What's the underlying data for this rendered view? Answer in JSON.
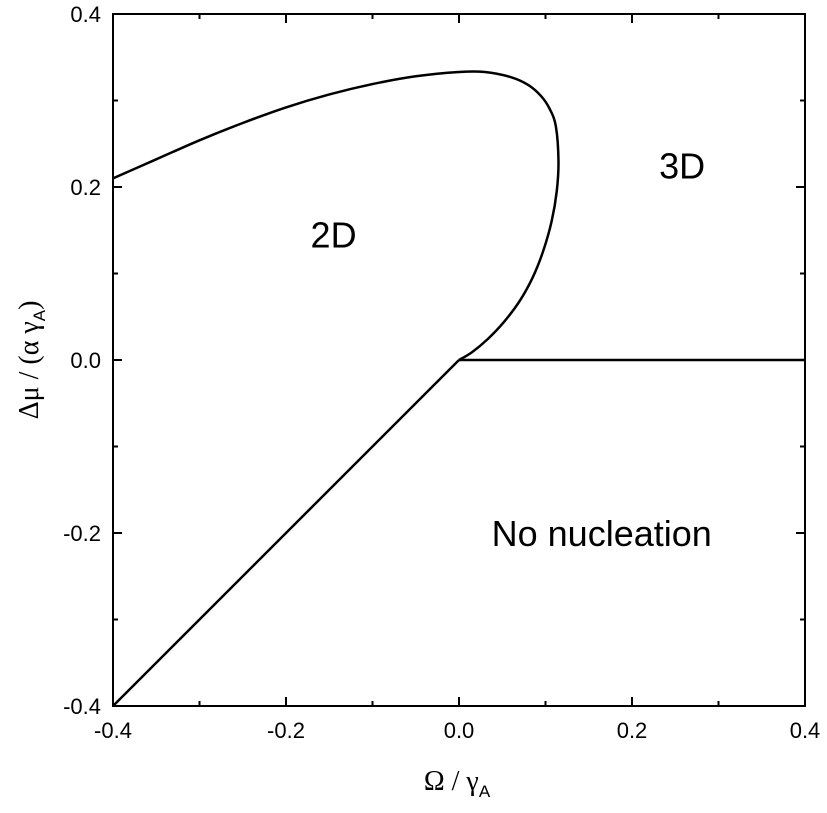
{
  "chart_data": {
    "type": "line",
    "title": "",
    "xlabel": {
      "main": "Ω / γ",
      "sub": "A"
    },
    "ylabel": {
      "main": "Δμ / (α γ",
      "sub": "A",
      "tail": ")"
    },
    "xlim": [
      -0.4,
      0.4
    ],
    "ylim": [
      -0.4,
      0.4
    ],
    "x_ticks": [
      -0.4,
      -0.2,
      0.0,
      0.2,
      0.4
    ],
    "x_tick_labels": [
      "-0.4",
      "-0.2",
      "0.0",
      "0.2",
      "0.4"
    ],
    "y_ticks": [
      -0.4,
      -0.2,
      0.0,
      0.2,
      0.4
    ],
    "y_tick_labels": [
      "-0.4",
      "-0.2",
      "0.0",
      "0.2",
      "0.4"
    ],
    "grid": false,
    "legend": "none",
    "line_color": "#000000",
    "series": [
      {
        "x": [
          -0.4,
          -0.35,
          -0.3,
          -0.25,
          -0.2,
          -0.15,
          -0.1,
          -0.05,
          0.0,
          0.03,
          0.06,
          0.08,
          0.095,
          0.105,
          0.112,
          0.115,
          0.113,
          0.107,
          0.097,
          0.085,
          0.07,
          0.052,
          0.033,
          0.015,
          0.0
        ],
        "y": [
          0.21,
          0.232,
          0.254,
          0.274,
          0.292,
          0.307,
          0.319,
          0.328,
          0.333,
          0.333,
          0.327,
          0.318,
          0.305,
          0.29,
          0.27,
          0.23,
          0.195,
          0.16,
          0.125,
          0.095,
          0.068,
          0.044,
          0.024,
          0.009,
          0.0
        ]
      },
      {
        "x": [
          0.0,
          -0.4
        ],
        "y": [
          0.0,
          -0.4
        ]
      },
      {
        "x": [
          0.0,
          0.4
        ],
        "y": [
          0.0,
          0.0
        ]
      }
    ],
    "annotations": [
      {
        "text": "2D",
        "x": -0.145,
        "y": 0.13
      },
      {
        "text": "3D",
        "x": 0.258,
        "y": 0.21
      },
      {
        "text": "No nucleation",
        "x": 0.165,
        "y": -0.215
      }
    ]
  }
}
